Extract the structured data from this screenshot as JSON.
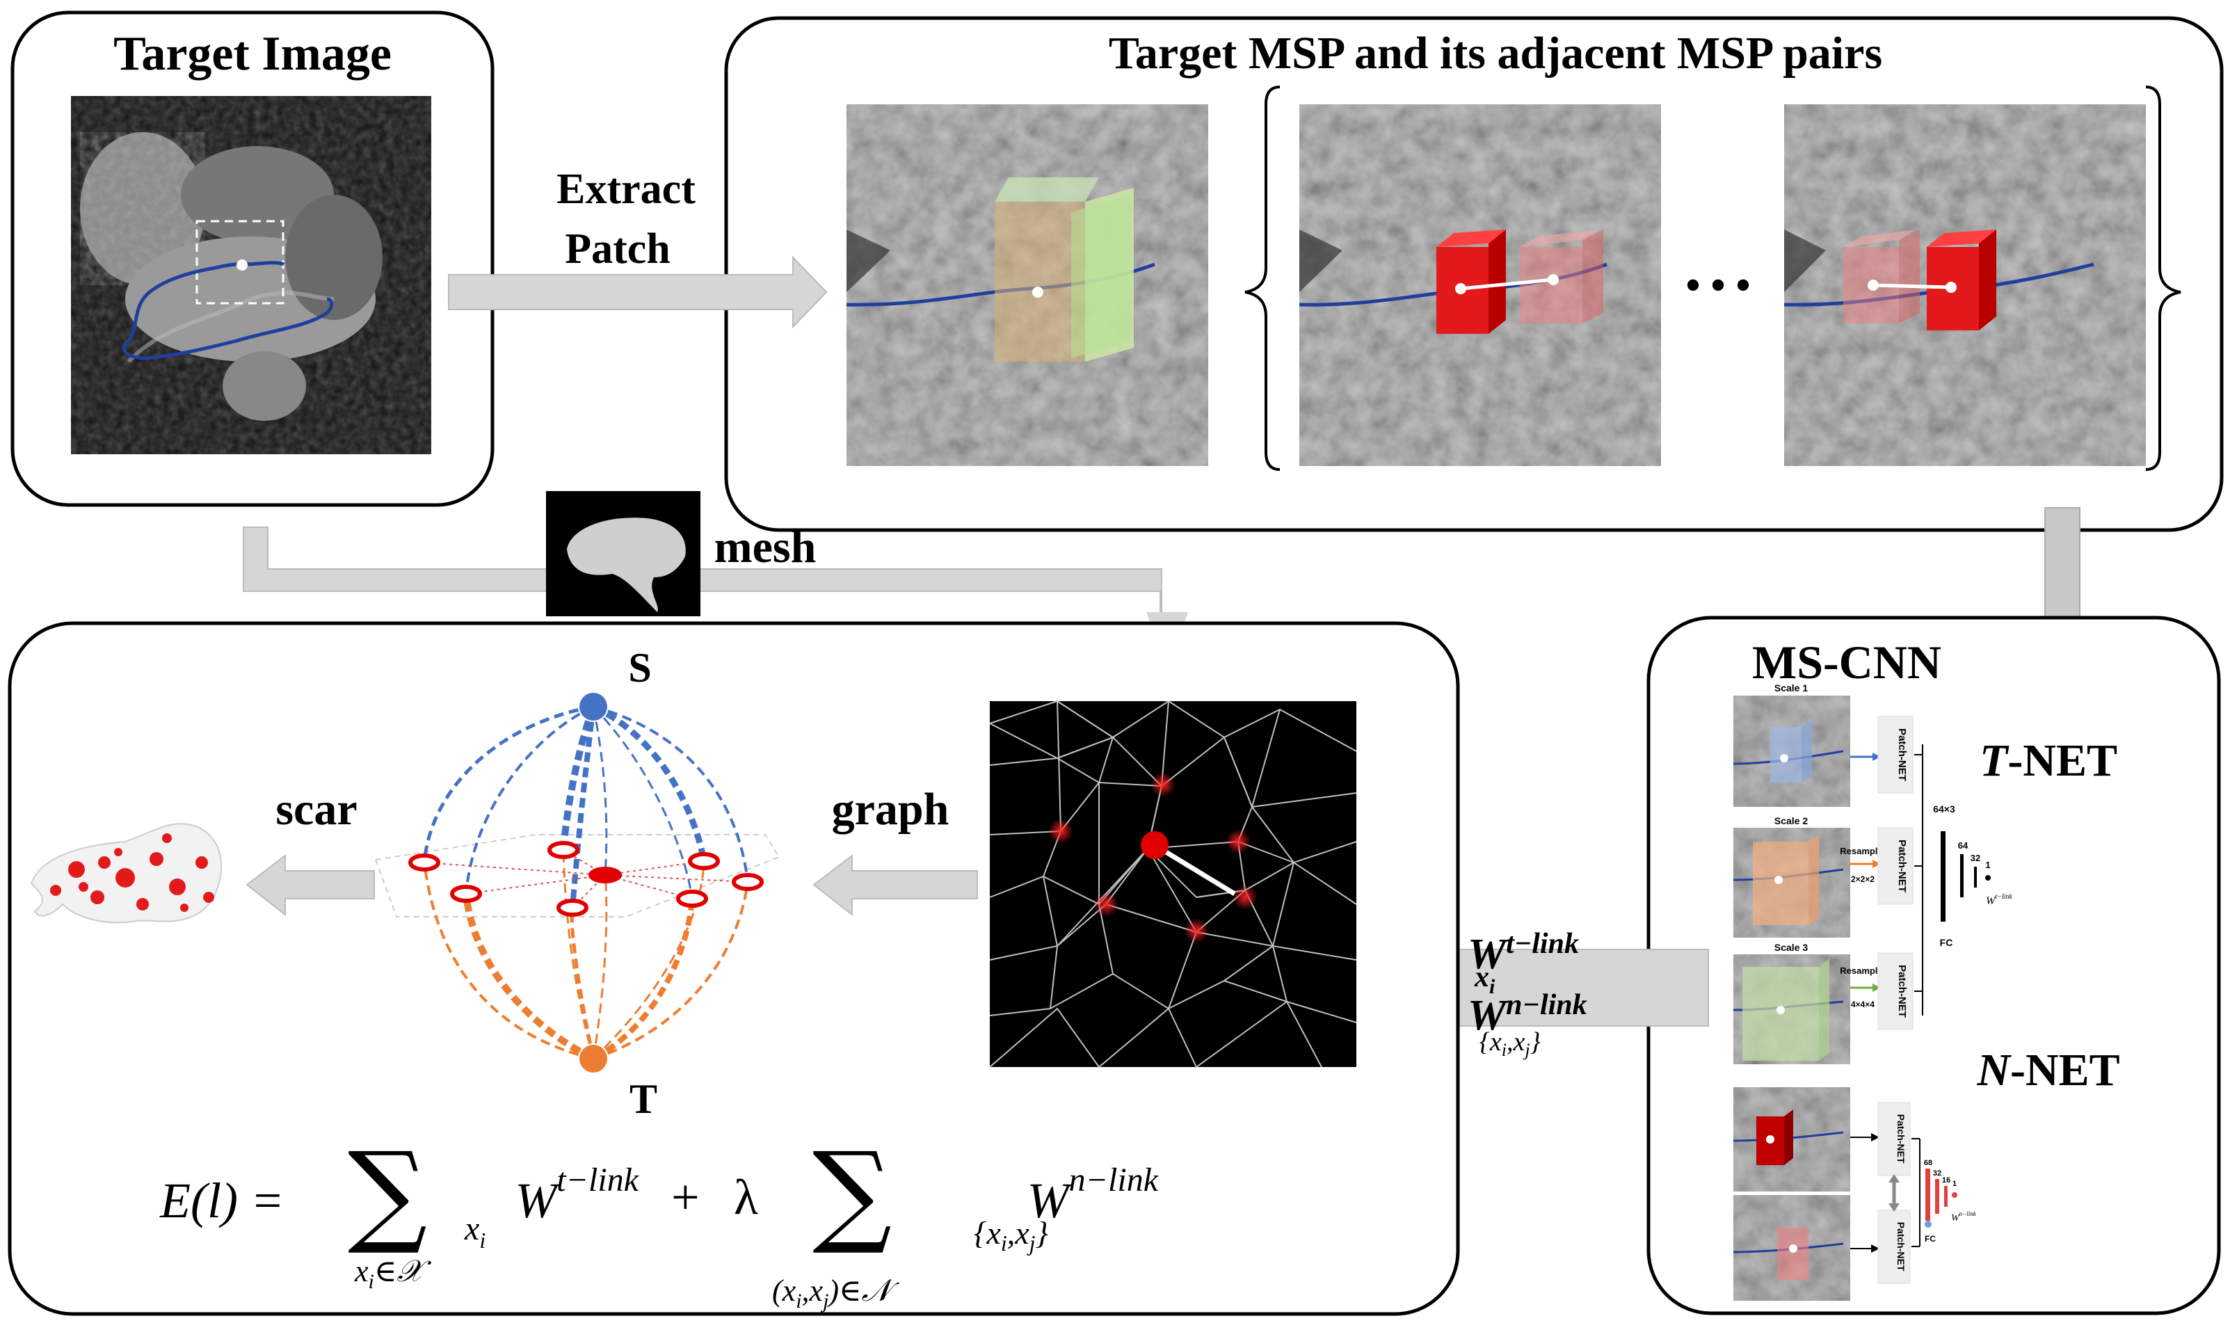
{
  "panels": {
    "target_image": {
      "title": "Target Image"
    },
    "msp": {
      "title": "Target MSP and its adjacent MSP pairs",
      "ellipsis": "• • •"
    },
    "mscnn": {
      "title": "MS-CNN",
      "t_net_prefix": "T",
      "t_net_suffix": "-NET",
      "n_net_prefix": "N",
      "n_net_suffix": "-NET",
      "scale1": "Scale 1",
      "scale2": "Scale 2",
      "scale3": "Scale 3",
      "patch_net": "Patch-NET",
      "resample": "Resample",
      "resample2": "2×2×2",
      "resample4": "4×4×4",
      "fc": "FC",
      "fc_dims_t": "64×3",
      "dim64": "64",
      "dim32": "32",
      "dim16": "16",
      "dim1": "1",
      "dim68": "68"
    },
    "graph_cut": {
      "source_label": "S",
      "sink_label": "T",
      "eq_lhs": "E(l) = ",
      "eq_plus": "+",
      "eq_lambda": "λ",
      "w": "W",
      "t_link": "t−link",
      "n_link": "n−link",
      "xi": "x",
      "sub_i": "i",
      "pair": "{x",
      "pair2": ",x",
      "pair3": "}",
      "sum_sub1": "x",
      "sum_sub1b": "∈𝒳",
      "sum_sub2": "(x",
      "sum_sub2b": ",x",
      "sum_sub2c": ")∈𝒩"
    }
  },
  "arrows": {
    "extract_patch_1": "Extract",
    "extract_patch_2": "Patch",
    "mesh": "mesh",
    "graph": "graph",
    "scar": "scar",
    "weights_w": "W",
    "weights_t": "t−link",
    "weights_n": "n−link",
    "weights_xi": "x",
    "weights_i": "i",
    "weights_pair": "{x",
    "weights_pair2": ",x",
    "weights_pair3": "}"
  },
  "colors": {
    "blue_edge": "#4472C4",
    "orange_edge": "#ED7D31",
    "red_node": "#E00000",
    "arrow_gray": "#D0D0D0",
    "green_box": "#A9D08E",
    "red_box": "#E31A1C"
  }
}
